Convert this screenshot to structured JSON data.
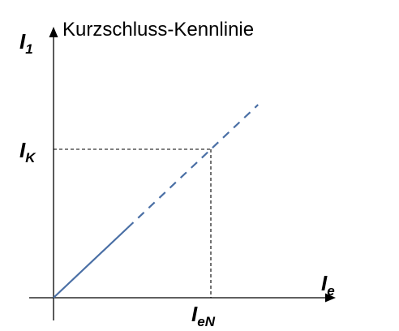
{
  "chart_data": {
    "type": "line",
    "title": "Kurzschluss-Kennlinie",
    "ylabel": {
      "base": "I",
      "sub": "1"
    },
    "xlabel": {
      "base": "I",
      "sub": "e"
    },
    "marker_x": {
      "base": "I",
      "sub": "eN"
    },
    "marker_y": {
      "base": "I",
      "sub": "K"
    },
    "xlim": [
      0,
      1.35
    ],
    "ylim": [
      0,
      1.3
    ],
    "series": [
      {
        "segments": [
          {
            "x": [
              0,
              0.47
            ],
            "y": [
              0,
              0.47
            ],
            "style": "solid"
          },
          {
            "x": [
              0.47,
              1.3
            ],
            "y": [
              0.47,
              1.3
            ],
            "style": "dashed"
          }
        ],
        "color": "#4a6fa5"
      }
    ],
    "operating_point": {
      "x": 1.0,
      "y": 1.0
    },
    "grid": false,
    "legend": "none"
  }
}
